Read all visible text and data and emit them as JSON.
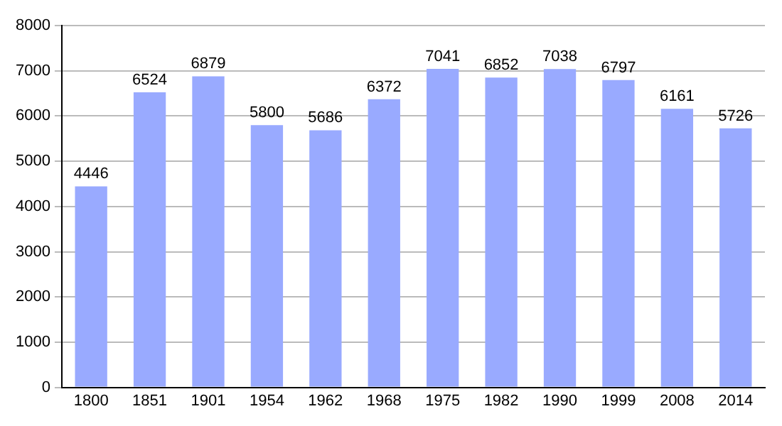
{
  "chart_data": {
    "type": "bar",
    "categories": [
      "1800",
      "1851",
      "1901",
      "1954",
      "1962",
      "1968",
      "1975",
      "1982",
      "1990",
      "1999",
      "2008",
      "2014"
    ],
    "values": [
      4446,
      6524,
      6879,
      5800,
      5686,
      6372,
      7041,
      6852,
      7038,
      6797,
      6161,
      5726
    ],
    "color": "#99aaff",
    "ylim": [
      0,
      8000
    ],
    "yticks": [
      0,
      1000,
      2000,
      3000,
      4000,
      5000,
      6000,
      7000,
      8000
    ],
    "grid": "y",
    "data_labels": true
  }
}
